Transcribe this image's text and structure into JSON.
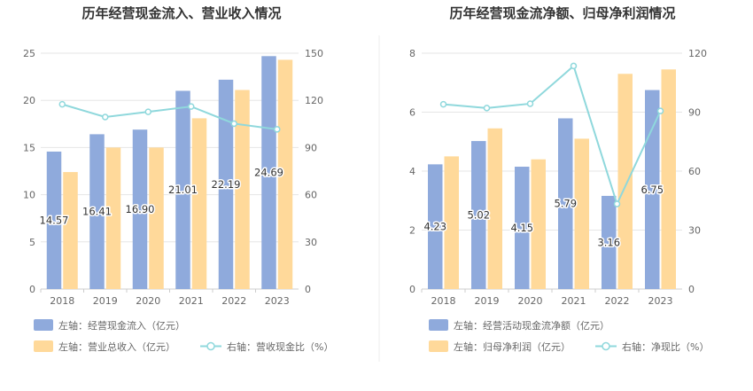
{
  "colors": {
    "bar_primary": "#8faadc",
    "bar_secondary": "#ffd99a",
    "line": "#8fd8dc",
    "grid": "#e6e6e6",
    "divider": "#ececec"
  },
  "chart_data": [
    {
      "type": "bar",
      "title": "历年经营现金流入、营业收入情况",
      "categories": [
        "2018",
        "2019",
        "2020",
        "2021",
        "2022",
        "2023"
      ],
      "left_axis": {
        "ticks": [
          "0",
          "5",
          "10",
          "15",
          "20",
          "25"
        ],
        "ylim": [
          0,
          25
        ]
      },
      "right_axis": {
        "ticks": [
          "0",
          "30",
          "60",
          "90",
          "120",
          "150"
        ],
        "ylim": [
          0,
          150
        ]
      },
      "series": [
        {
          "name": "左轴：经营现金流入（亿元）",
          "kind": "bar",
          "axis": "left",
          "values": [
            14.57,
            16.41,
            16.9,
            21.01,
            22.19,
            24.69
          ],
          "labels": [
            "14.57",
            "16.41",
            "16.90",
            "21.01",
            "22.19",
            "24.69"
          ]
        },
        {
          "name": "左轴：营业总收入（亿元）",
          "kind": "bar",
          "axis": "left",
          "values": [
            12.4,
            15.0,
            15.0,
            18.1,
            21.1,
            24.3
          ]
        },
        {
          "name": "右轴：营收现金比（%）",
          "kind": "line",
          "axis": "right",
          "values": [
            117.5,
            109.4,
            112.7,
            116.1,
            105.2,
            101.6
          ]
        }
      ]
    },
    {
      "type": "bar",
      "title": "历年经营现金流净额、归母净利润情况",
      "categories": [
        "2018",
        "2019",
        "2020",
        "2021",
        "2022",
        "2023"
      ],
      "left_axis": {
        "ticks": [
          "0",
          "2",
          "4",
          "6",
          "8"
        ],
        "ylim": [
          0,
          8
        ]
      },
      "right_axis": {
        "ticks": [
          "0",
          "30",
          "60",
          "90",
          "120"
        ],
        "ylim": [
          0,
          120
        ]
      },
      "series": [
        {
          "name": "左轴：经营活动现金流净额（亿元）",
          "kind": "bar",
          "axis": "left",
          "values": [
            4.23,
            5.02,
            4.15,
            5.79,
            3.16,
            6.75
          ],
          "labels": [
            "4.23",
            "5.02",
            "4.15",
            "5.79",
            "3.16",
            "6.75"
          ]
        },
        {
          "name": "左轴：归母净利润（亿元）",
          "kind": "bar",
          "axis": "left",
          "values": [
            4.5,
            5.45,
            4.4,
            5.1,
            7.3,
            7.45
          ]
        },
        {
          "name": "右轴：净现比（%）",
          "kind": "line",
          "axis": "right",
          "values": [
            94.0,
            92.1,
            94.3,
            113.5,
            43.3,
            90.6
          ]
        }
      ]
    }
  ]
}
